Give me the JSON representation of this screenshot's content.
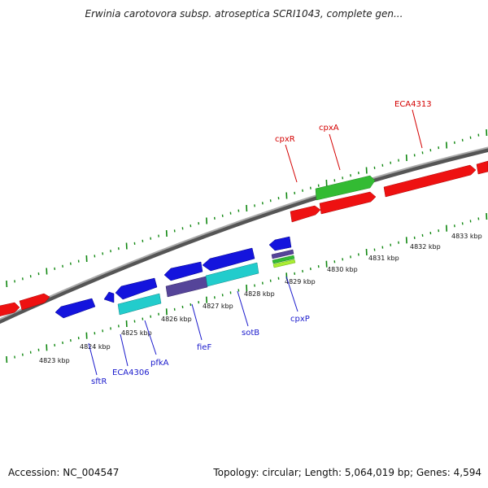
{
  "title": "Erwinia carotovora subsp. atroseptica SCRI1043, complete gen...",
  "footer": {
    "accession": "Accession: NC_004547",
    "summary": "Topology: circular; Length: 5,064,019 bp; Genes: 4,594"
  },
  "scale": {
    "kbp_labels": [
      "4823 kbp",
      "4824 kbp",
      "4825 kbp",
      "4826 kbp",
      "4827 kbp",
      "4828 kbp",
      "4829 kbp",
      "4830 kbp",
      "4831 kbp",
      "4832 kbp",
      "4833 kbp"
    ]
  },
  "gene_labels": {
    "forward": [
      "cpxR",
      "cpxA",
      "ECA4313"
    ],
    "reverse": [
      "sftR",
      "ECA4306",
      "pfkA",
      "fieF",
      "sotB",
      "cpxP"
    ]
  },
  "colors": {
    "forward_label": "#d40000",
    "reverse_label": "#1a1acc",
    "forward_gene": "#ee1111",
    "reverse_gene": "#1414dd",
    "green_gene": "#33bb33",
    "cyan_gene": "#22cccc",
    "purple_gene": "#554499",
    "tick": "#118811",
    "backbone": "#888888"
  }
}
